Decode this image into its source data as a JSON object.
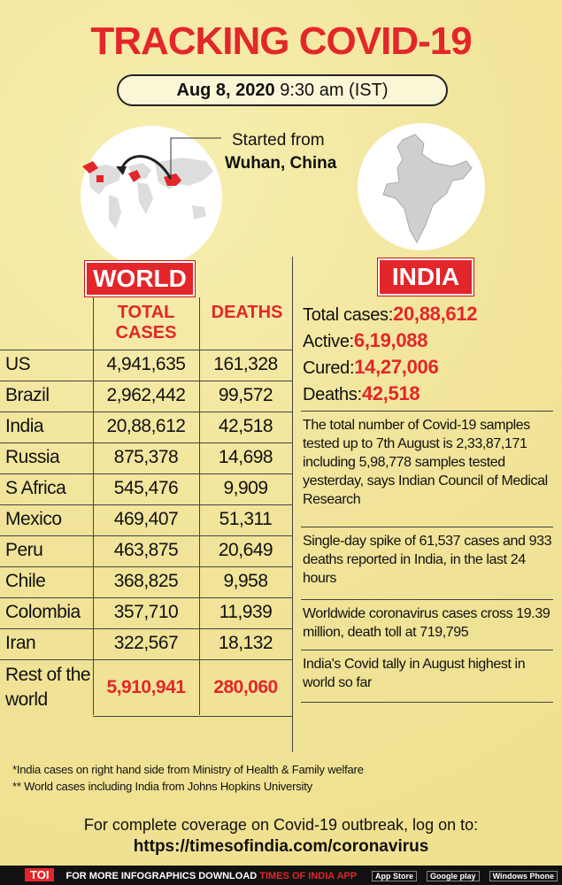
{
  "header": {
    "title": "TRACKING COVID-19",
    "date": "Aug 8, 2020",
    "time": "9:30 am (IST)"
  },
  "origin": {
    "caption": "Started from",
    "place": "Wuhan, China"
  },
  "world": {
    "heading": "WORLD",
    "columns": [
      "TOTAL CASES",
      "DEATHS"
    ],
    "rows": [
      [
        "US",
        "4,941,635",
        "161,328"
      ],
      [
        "Brazil",
        "2,962,442",
        "99,572"
      ],
      [
        "India",
        "20,88,612",
        "42,518"
      ],
      [
        "Russia",
        "875,378",
        "14,698"
      ],
      [
        "S Africa",
        "545,476",
        "9,909"
      ],
      [
        "Mexico",
        "469,407",
        "51,311"
      ],
      [
        "Peru",
        "463,875",
        "20,649"
      ],
      [
        "Chile",
        "368,825",
        "9,958"
      ],
      [
        "Colombia",
        "357,710",
        "11,939"
      ],
      [
        "Iran",
        "322,567",
        "18,132"
      ],
      [
        "Rest of the world",
        "5,910,941",
        "280,060"
      ]
    ]
  },
  "india": {
    "heading": "INDIA",
    "stats": [
      {
        "label": "Total cases:",
        "value": "20,88,612"
      },
      {
        "label": "Active:",
        "value": "6,19,088"
      },
      {
        "label": "Cured:",
        "value": "14,27,006"
      },
      {
        "label": "Deaths:",
        "value": "42,518"
      }
    ],
    "notes": [
      "The total number of Covid-19 samples tested up to 7th August is 2,33,87,171 including 5,98,778 samples tested yesterday, says Indian Council of Medical Research",
      "Single-day spike of 61,537 cases and 933 deaths reported in India, in the last 24 hours",
      "Worldwide coronavirus cases cross 19.39 million, death toll at 719,795",
      "India's Covid tally in August highest in world so far"
    ]
  },
  "footnotes": [
    "*India cases on right hand side from Ministry of Health & Family welfare",
    "** World cases including India from Johns Hopkins University"
  ],
  "footer": {
    "text": "For complete coverage on Covid-19 outbreak, log on to:",
    "url": "https://timesofindia.com/coronavirus"
  },
  "bottom_bar": {
    "brand": "TOI",
    "text": "FOR MORE INFOGRAPHICS DOWNLOAD",
    "app": "TIMES OF INDIA APP",
    "stores": [
      "App Store",
      "Google play",
      "Windows Phone"
    ]
  }
}
